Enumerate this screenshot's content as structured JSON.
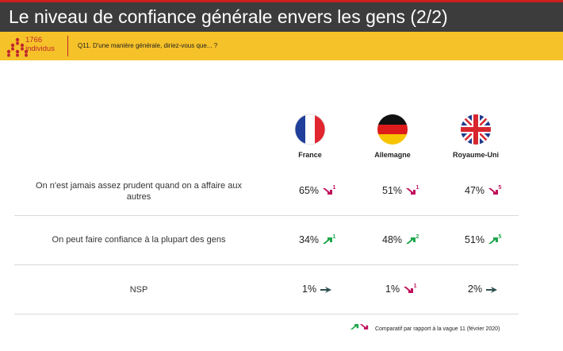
{
  "header": {
    "title": "Le niveau de confiance générale envers les gens (2/2)"
  },
  "question_bar": {
    "sample_count": "1766",
    "sample_label": "individus",
    "question": "Q11. D'une manière générale, diriez-vous que... ?"
  },
  "countries": [
    {
      "name": "France",
      "flag": "france-flag-icon"
    },
    {
      "name": "Allemagne",
      "flag": "germany-flag-icon"
    },
    {
      "name": "Royaume-Uni",
      "flag": "uk-flag-icon"
    }
  ],
  "rows": [
    {
      "label": "On n'est jamais assez prudent quand on a affaire aux autres",
      "cells": [
        {
          "value": "65%",
          "trend": "down",
          "wave": "1"
        },
        {
          "value": "51%",
          "trend": "down",
          "wave": "1"
        },
        {
          "value": "47%",
          "trend": "down",
          "wave": "5"
        }
      ]
    },
    {
      "label": "On peut faire confiance à la plupart des gens",
      "cells": [
        {
          "value": "34%",
          "trend": "up",
          "wave": "1"
        },
        {
          "value": "48%",
          "trend": "up",
          "wave": "2"
        },
        {
          "value": "51%",
          "trend": "up",
          "wave": "5"
        }
      ]
    },
    {
      "label": "NSP",
      "cells": [
        {
          "value": "1%",
          "trend": "stable",
          "wave": ""
        },
        {
          "value": "1%",
          "trend": "down",
          "wave": "1"
        },
        {
          "value": "2%",
          "trend": "stable",
          "wave": ""
        }
      ]
    }
  ],
  "colors": {
    "up": "#1ea64a",
    "down": "#c0105a",
    "stable": "#2f4f4f",
    "title_bg": "#3c3c3c",
    "question_bg": "#f6c229",
    "accent": "#c0272d"
  },
  "footnote": "Comparatif par rapport à la vague 11 (février 2020)"
}
